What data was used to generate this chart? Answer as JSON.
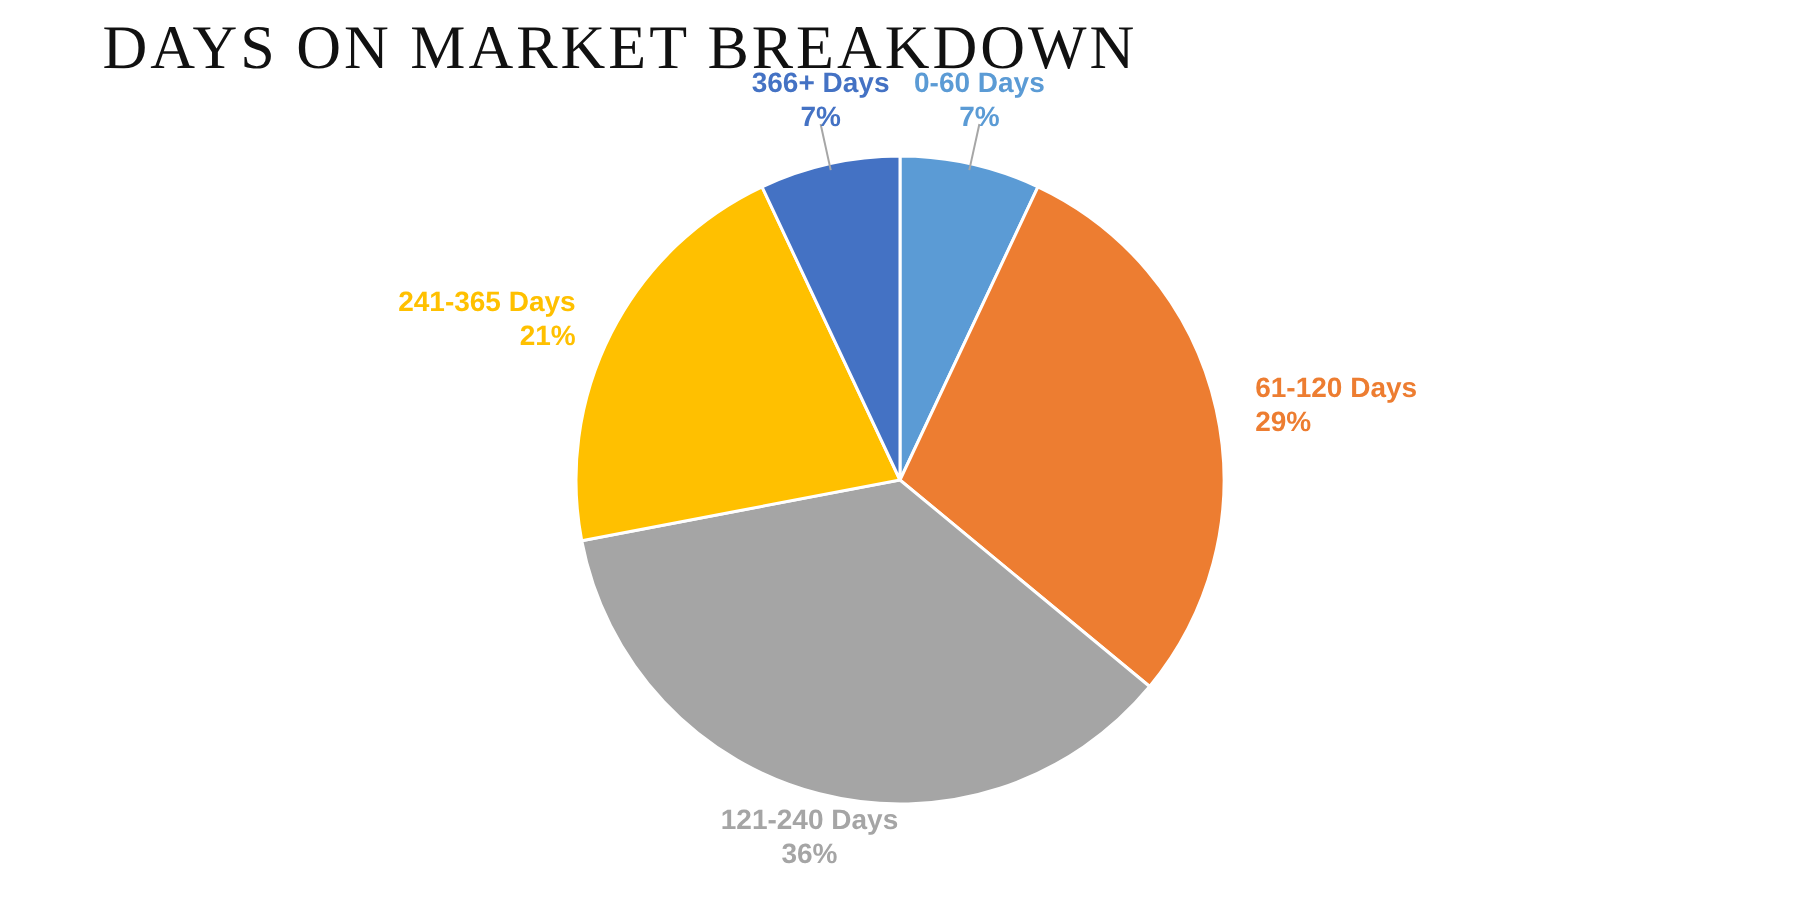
{
  "chart_data": {
    "type": "pie",
    "title": "DAYS ON MARKET BREAKDOWN",
    "categories": [
      "0-60 Days",
      "61-120 Days",
      "121-240 Days",
      "241-365 Days",
      "366+ Days"
    ],
    "values": [
      7,
      29,
      36,
      21,
      7
    ],
    "colors": [
      "#5b9bd5",
      "#ed7d31",
      "#a5a5a5",
      "#ffc000",
      "#4472c4"
    ],
    "value_labels": [
      "7%",
      "29%",
      "36%",
      "21%",
      "7%"
    ],
    "legend": false
  }
}
